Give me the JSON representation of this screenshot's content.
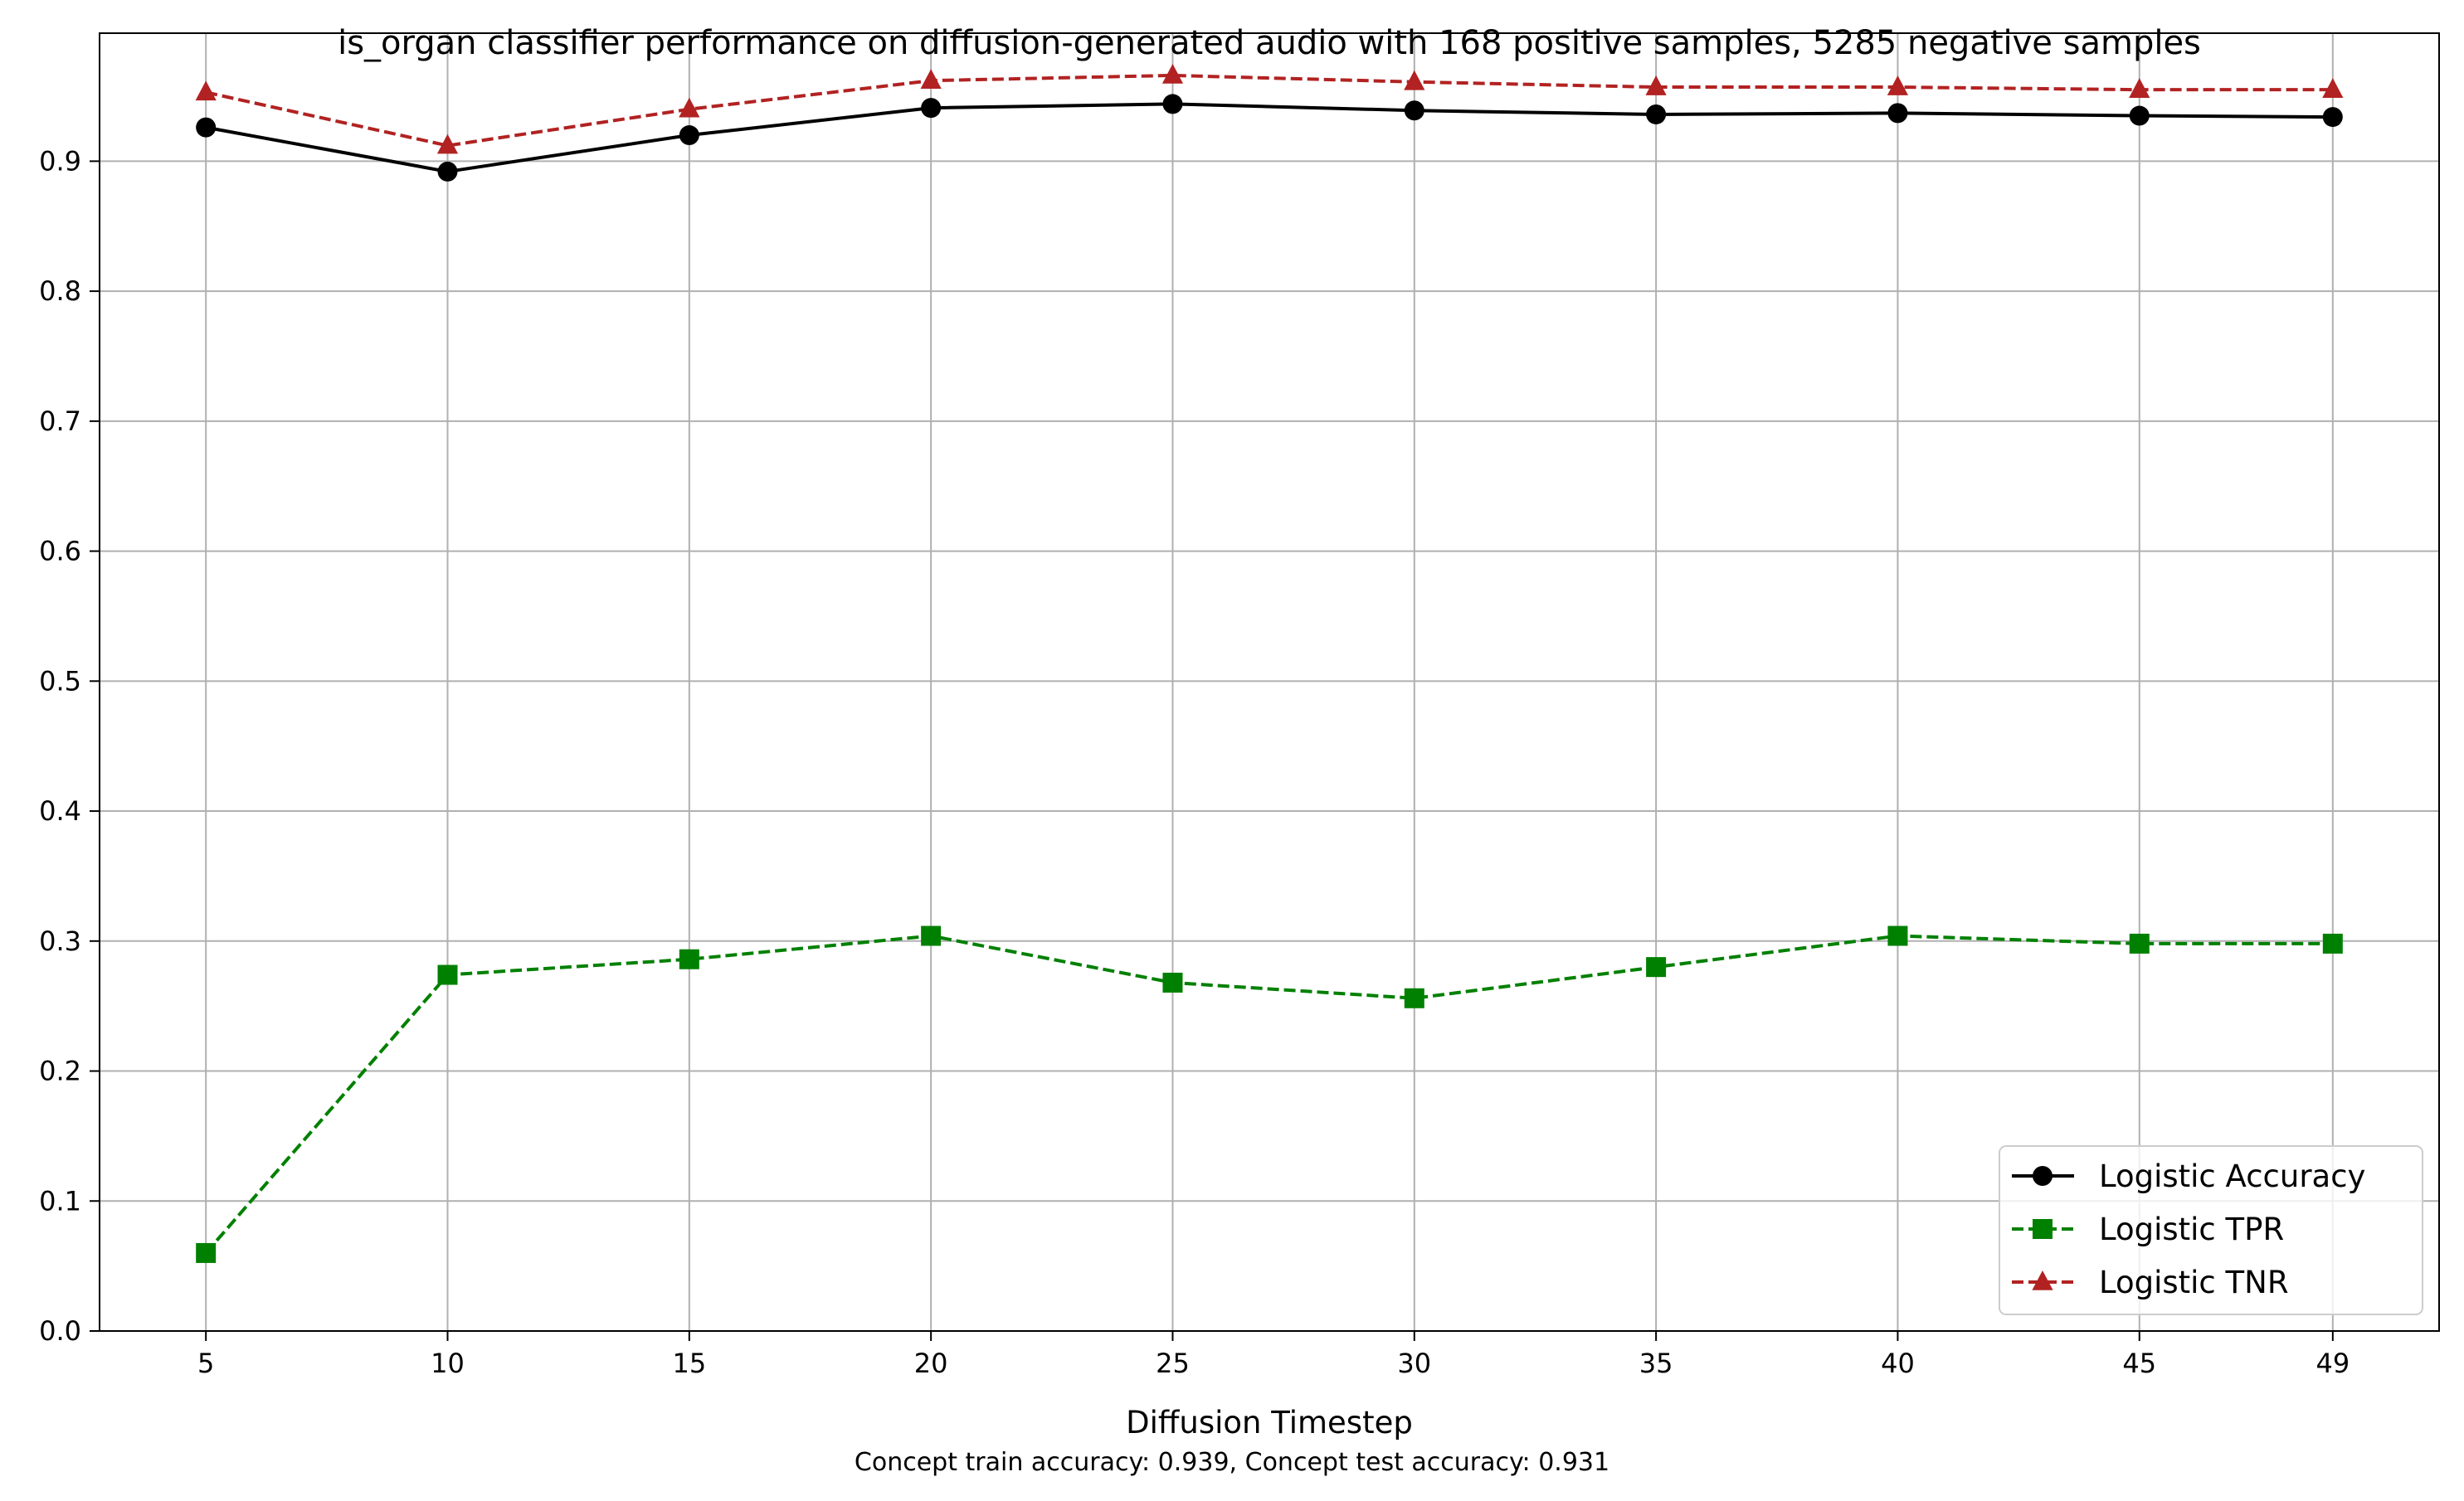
{
  "chart_data": {
    "type": "line",
    "title": "is_organ classifier performance on diffusion-generated audio with 168 positive samples, 5285 negative samples",
    "xlabel": "Diffusion Timestep",
    "ylabel": "",
    "footnote": "Concept train accuracy: 0.939, Concept test accuracy: 0.931",
    "x": [
      5,
      10,
      15,
      20,
      25,
      30,
      35,
      40,
      45,
      49
    ],
    "xticks": [
      "5",
      "10",
      "15",
      "20",
      "25",
      "30",
      "35",
      "40",
      "45",
      "49"
    ],
    "yticks": [
      "0.0",
      "0.1",
      "0.2",
      "0.3",
      "0.4",
      "0.5",
      "0.6",
      "0.7",
      "0.8",
      "0.9"
    ],
    "xlim": [
      2.8,
      51.2
    ],
    "ylim": [
      0.0,
      0.9985
    ],
    "grid": true,
    "legend_position": "lower-right",
    "series": [
      {
        "name": "Logistic Accuracy",
        "values": [
          0.926,
          0.892,
          0.92,
          0.941,
          0.944,
          0.939,
          0.936,
          0.937,
          0.935,
          0.934
        ],
        "color": "#000000",
        "dash": "solid",
        "marker": "circle"
      },
      {
        "name": "Logistic TPR",
        "values": [
          0.06,
          0.274,
          0.286,
          0.304,
          0.268,
          0.256,
          0.28,
          0.304,
          0.298,
          0.298
        ],
        "color": "#008000",
        "dash": "dashed",
        "marker": "square"
      },
      {
        "name": "Logistic TNR",
        "values": [
          0.953,
          0.912,
          0.94,
          0.962,
          0.966,
          0.961,
          0.957,
          0.957,
          0.955,
          0.955
        ],
        "color": "#b22222",
        "dash": "dashed",
        "marker": "triangle"
      }
    ]
  }
}
